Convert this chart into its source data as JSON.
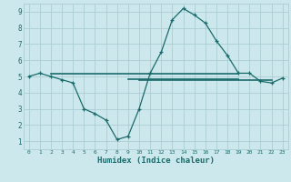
{
  "xlabel": "Humidex (Indice chaleur)",
  "background_color": "#cce8ec",
  "grid_color": "#aacdd4",
  "line_color": "#1a6b6b",
  "xlim": [
    -0.5,
    23.5
  ],
  "ylim": [
    0.5,
    9.5
  ],
  "xticks": [
    0,
    1,
    2,
    3,
    4,
    5,
    6,
    7,
    8,
    9,
    10,
    11,
    12,
    13,
    14,
    15,
    16,
    17,
    18,
    19,
    20,
    21,
    22,
    23
  ],
  "yticks": [
    1,
    2,
    3,
    4,
    5,
    6,
    7,
    8,
    9
  ],
  "series": {
    "main": {
      "x": [
        0,
        1,
        2,
        3,
        4,
        5,
        6,
        7,
        8,
        9,
        10,
        11,
        12,
        13,
        14,
        15,
        16,
        17,
        18,
        19,
        20,
        21,
        22,
        23
      ],
      "y": [
        5.0,
        5.2,
        5.0,
        4.8,
        4.6,
        3.0,
        2.7,
        2.3,
        1.1,
        1.3,
        3.0,
        5.2,
        6.5,
        8.5,
        9.2,
        8.8,
        8.3,
        7.2,
        6.3,
        5.2,
        5.2,
        4.7,
        4.6,
        4.9
      ]
    },
    "flat_high": {
      "x": [
        2,
        19
      ],
      "y": [
        5.15,
        5.15
      ]
    },
    "flat_mid": {
      "x": [
        9,
        19
      ],
      "y": [
        4.85,
        4.85
      ]
    },
    "flat_low": {
      "x": [
        10,
        22
      ],
      "y": [
        4.75,
        4.75
      ]
    }
  }
}
